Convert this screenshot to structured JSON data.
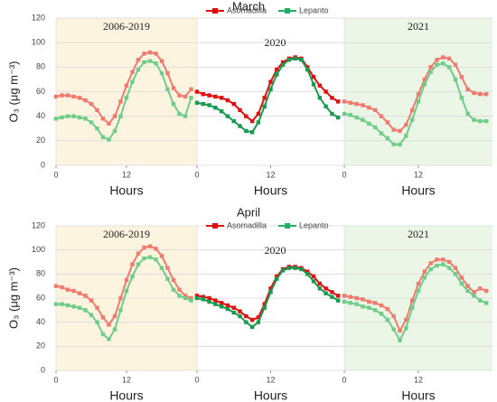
{
  "chart_data": [
    {
      "type": "line",
      "title": "March",
      "ylabel": "O₃ (μg m⁻³)",
      "xlabel": "Hours",
      "x": [
        0,
        1,
        2,
        3,
        4,
        5,
        6,
        7,
        8,
        9,
        10,
        11,
        12,
        13,
        14,
        15,
        16,
        17,
        18,
        19,
        20,
        21,
        22,
        23
      ],
      "xlim": [
        0,
        24
      ],
      "xticks": [
        0,
        12
      ],
      "ylim": [
        0,
        120
      ],
      "yticks": [
        0,
        20,
        40,
        60,
        80,
        100,
        120
      ],
      "grid": true,
      "legend": [
        {
          "name": "Asomadilla",
          "color": "#e01010"
        },
        {
          "name": "Lepanto",
          "color": "#20b060"
        }
      ],
      "panels": [
        {
          "label": "2006-2019",
          "background": "#fdf4e0",
          "series": [
            {
              "color": "#f07a70",
              "values": [
                56,
                57,
                57,
                56,
                55,
                53,
                50,
                45,
                38,
                34,
                40,
                52,
                65,
                76,
                86,
                91,
                92,
                91,
                85,
                75,
                63,
                57,
                56,
                62
              ]
            },
            {
              "color": "#70cc8a",
              "values": [
                38,
                39,
                40,
                40,
                39,
                38,
                35,
                30,
                23,
                21,
                28,
                40,
                55,
                68,
                78,
                84,
                85,
                83,
                75,
                62,
                50,
                42,
                40,
                55
              ]
            }
          ]
        },
        {
          "label": "2020",
          "background": "#ffffff",
          "series": [
            {
              "color": "#e01010",
              "values": [
                60,
                58,
                57,
                56,
                55,
                53,
                50,
                45,
                40,
                36,
                42,
                55,
                68,
                78,
                84,
                87,
                88,
                87,
                80,
                72,
                65,
                60,
                55,
                52
              ]
            },
            {
              "color": "#189a50",
              "values": [
                51,
                50,
                49,
                47,
                44,
                40,
                36,
                32,
                28,
                27,
                35,
                48,
                62,
                74,
                82,
                86,
                87,
                86,
                78,
                66,
                55,
                48,
                42,
                39
              ]
            }
          ]
        },
        {
          "label": "2021",
          "background": "#ebf6e6",
          "series": [
            {
              "color": "#f07a70",
              "values": [
                52,
                51,
                50,
                49,
                47,
                45,
                40,
                35,
                29,
                28,
                33,
                45,
                58,
                70,
                80,
                86,
                88,
                87,
                82,
                72,
                62,
                59,
                58,
                58
              ]
            },
            {
              "color": "#70cc8a",
              "values": [
                42,
                41,
                39,
                37,
                34,
                31,
                26,
                22,
                17,
                17,
                24,
                37,
                52,
                66,
                76,
                82,
                83,
                80,
                70,
                55,
                42,
                37,
                36,
                36
              ]
            }
          ]
        }
      ]
    },
    {
      "type": "line",
      "title": "April",
      "ylabel": "O₃ (μg m⁻³)",
      "xlabel": "Hours",
      "x": [
        0,
        1,
        2,
        3,
        4,
        5,
        6,
        7,
        8,
        9,
        10,
        11,
        12,
        13,
        14,
        15,
        16,
        17,
        18,
        19,
        20,
        21,
        22,
        23
      ],
      "xlim": [
        0,
        24
      ],
      "xticks": [
        0,
        12
      ],
      "ylim": [
        0,
        120
      ],
      "yticks": [
        0,
        20,
        40,
        60,
        80,
        100,
        120
      ],
      "grid": true,
      "legend": [
        {
          "name": "Asomadilla",
          "color": "#e01010"
        },
        {
          "name": "Lepanto",
          "color": "#20b060"
        }
      ],
      "panels": [
        {
          "label": "2006-2019",
          "background": "#fdf4e0",
          "series": [
            {
              "color": "#f07a70",
              "values": [
                70,
                69,
                67,
                66,
                64,
                62,
                58,
                52,
                44,
                38,
                45,
                60,
                75,
                88,
                97,
                102,
                103,
                101,
                95,
                85,
                75,
                67,
                62,
                60
              ]
            },
            {
              "color": "#70cc8a",
              "values": [
                55,
                55,
                54,
                53,
                52,
                50,
                46,
                40,
                30,
                26,
                34,
                50,
                66,
                78,
                88,
                93,
                94,
                92,
                85,
                76,
                67,
                62,
                60,
                58
              ]
            }
          ]
        },
        {
          "label": "2020",
          "background": "#ffffff",
          "series": [
            {
              "color": "#e01010",
              "values": [
                62,
                61,
                60,
                58,
                56,
                54,
                52,
                49,
                45,
                42,
                44,
                55,
                68,
                78,
                84,
                86,
                86,
                85,
                82,
                78,
                72,
                68,
                65,
                62
              ]
            },
            {
              "color": "#189a50",
              "values": [
                60,
                59,
                57,
                55,
                53,
                51,
                48,
                45,
                40,
                36,
                40,
                52,
                65,
                76,
                83,
                85,
                85,
                84,
                80,
                74,
                68,
                64,
                61,
                58
              ]
            }
          ]
        },
        {
          "label": "2021",
          "background": "#ebf6e6",
          "series": [
            {
              "color": "#f07a70",
              "values": [
                62,
                61,
                60,
                59,
                57,
                56,
                54,
                51,
                45,
                33,
                42,
                58,
                72,
                82,
                89,
                92,
                92,
                90,
                85,
                77,
                70,
                65,
                68,
                66
              ]
            },
            {
              "color": "#70cc8a",
              "values": [
                57,
                56,
                55,
                53,
                52,
                50,
                47,
                42,
                34,
                25,
                35,
                52,
                66,
                77,
                84,
                87,
                88,
                85,
                80,
                72,
                66,
                62,
                58,
                56
              ]
            }
          ]
        }
      ]
    }
  ]
}
